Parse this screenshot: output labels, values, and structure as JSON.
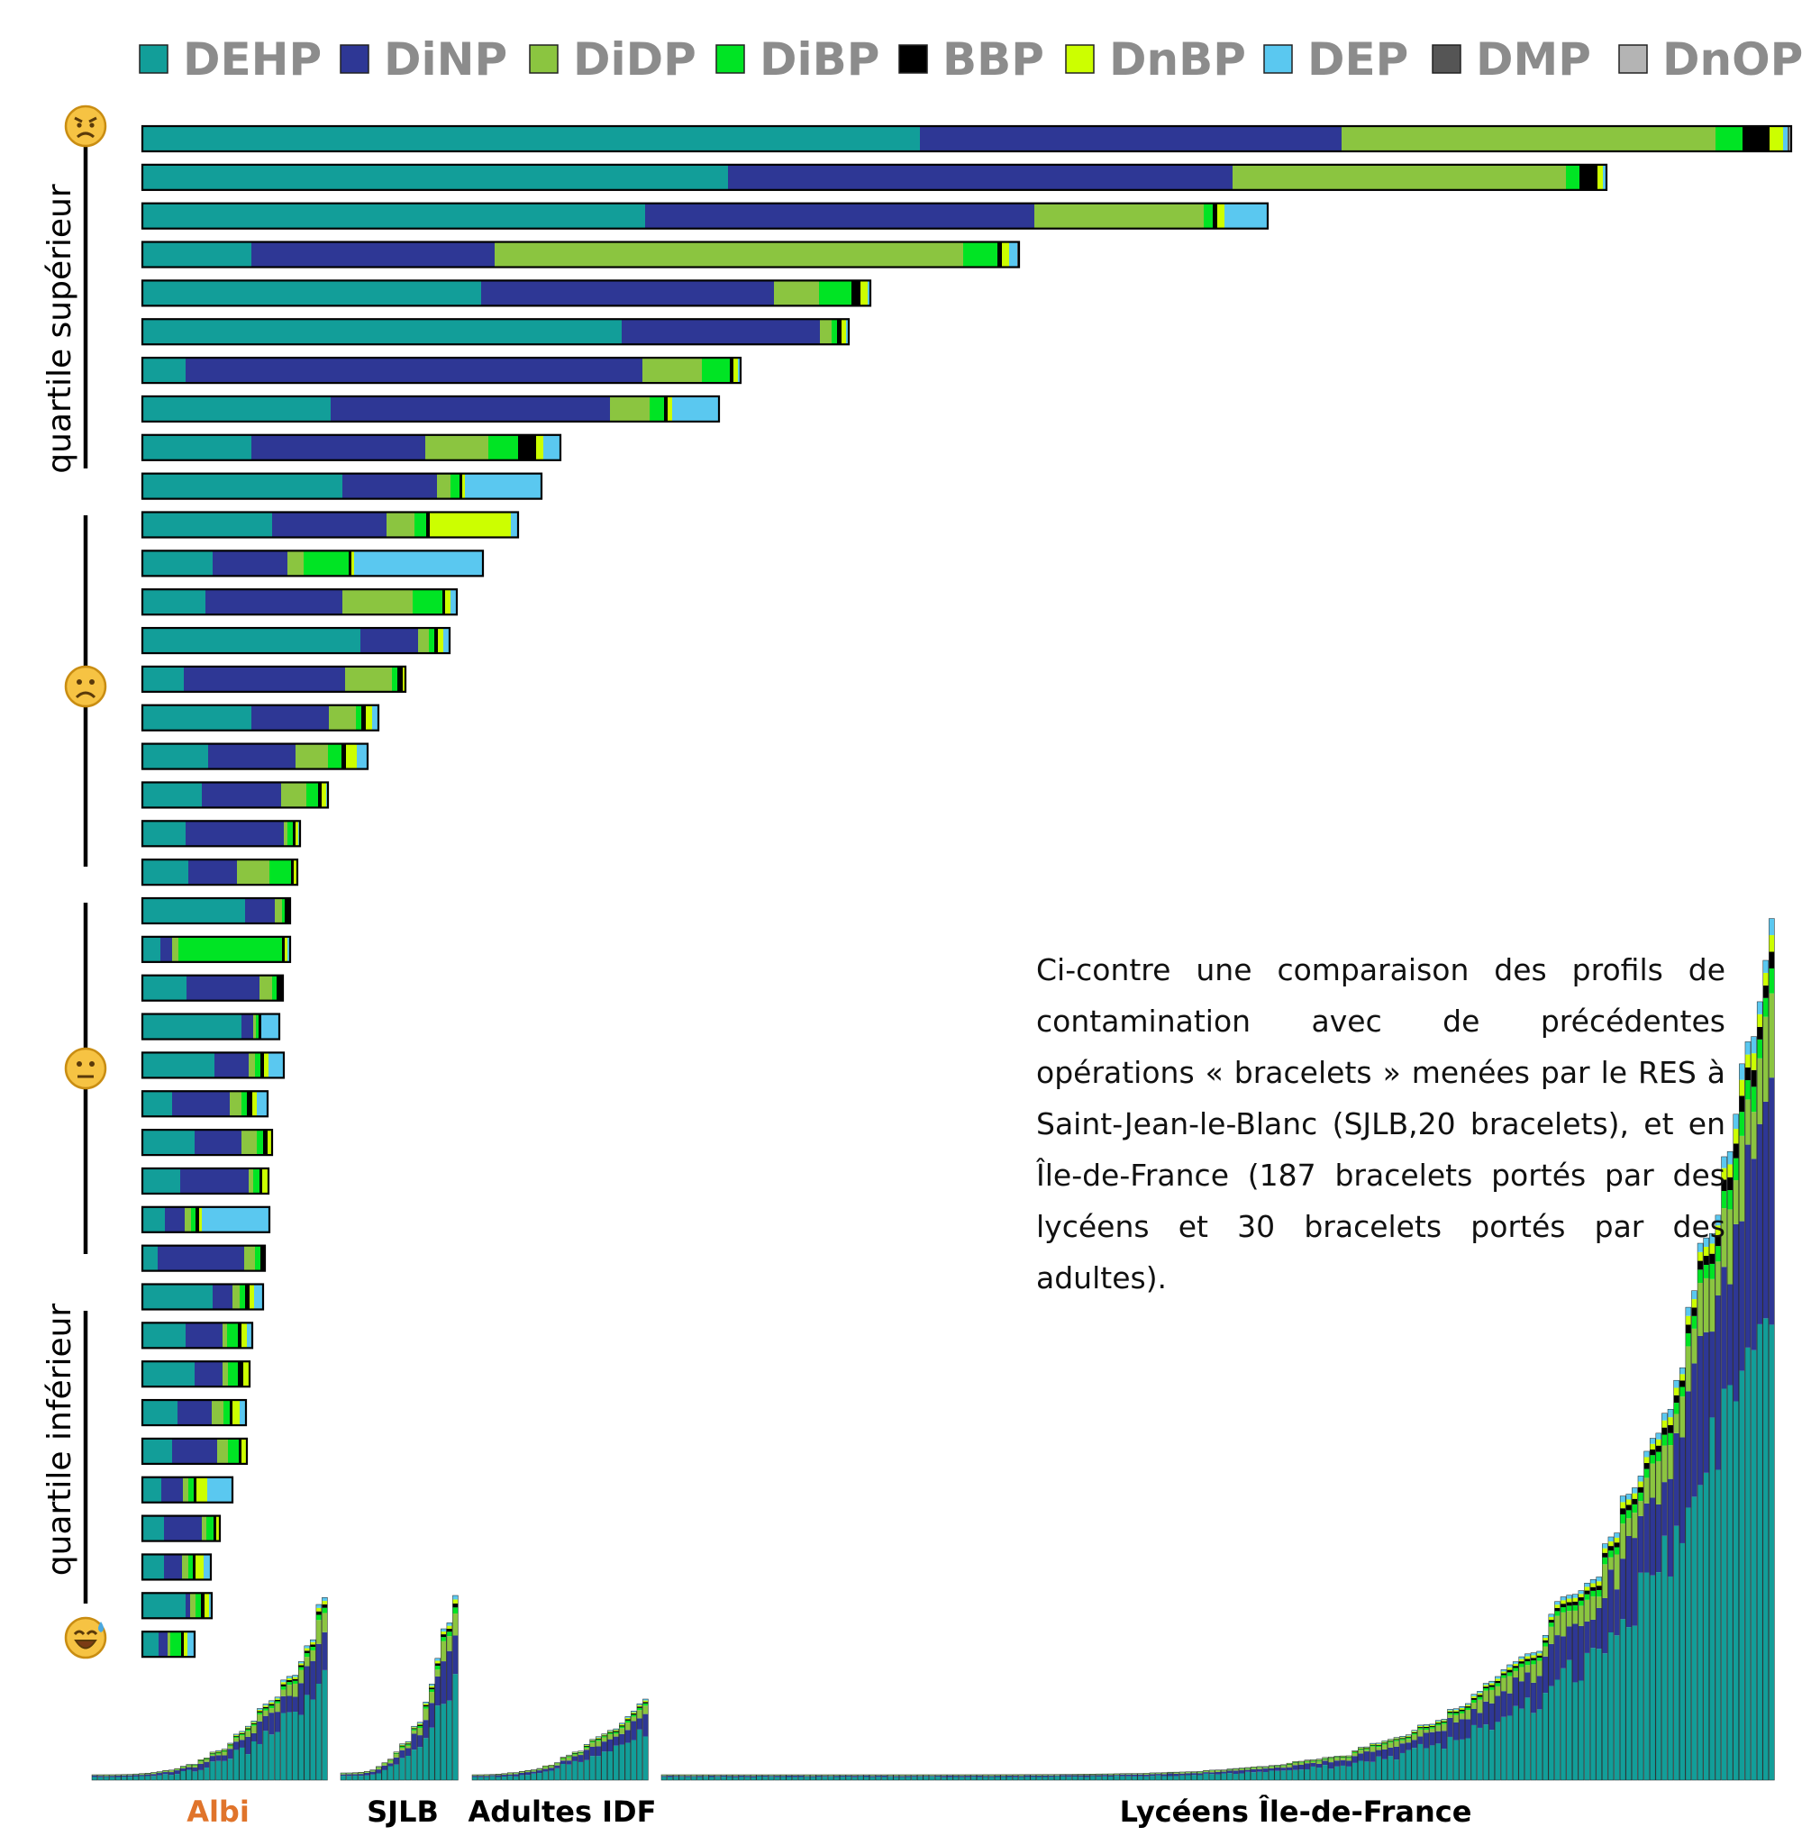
{
  "chart_data": {
    "type": "bar",
    "orientation": "horizontal",
    "stacked": true,
    "legend_position": "top",
    "grid": false,
    "legend": [
      {
        "name": "DEHP",
        "color": "#129e99"
      },
      {
        "name": "DiNP",
        "color": "#2e3795"
      },
      {
        "name": "DiDP",
        "color": "#8bc540"
      },
      {
        "name": "DiBP",
        "color": "#00e424"
      },
      {
        "name": "BBP",
        "color": "#000000"
      },
      {
        "name": "DnBP",
        "color": "#ccff00"
      },
      {
        "name": "DEP",
        "color": "#5ac8f0"
      },
      {
        "name": "DMP",
        "color": "#555555"
      },
      {
        "name": "DnOP",
        "color": "#b4b4b4"
      }
    ],
    "bars_note": "40 Albi bracelets, sorted descending; relative amounts per compound",
    "bars": [
      [
        863,
        468,
        415,
        30,
        30,
        15,
        5,
        2,
        2
      ],
      [
        650,
        560,
        370,
        15,
        20,
        6,
        3,
        1,
        0
      ],
      [
        558,
        432,
        188,
        10,
        5,
        8,
        48,
        0,
        0
      ],
      [
        121,
        270,
        520,
        38,
        5,
        8,
        9,
        2,
        0
      ],
      [
        376,
        325,
        50,
        36,
        10,
        8,
        3,
        0,
        0
      ],
      [
        532,
        220,
        13,
        6,
        5,
        5,
        3,
        0,
        0
      ],
      [
        48,
        507,
        66,
        31,
        4,
        5,
        3,
        0,
        0
      ],
      [
        209,
        310,
        44,
        16,
        4,
        5,
        52,
        0,
        0
      ],
      [
        121,
        193,
        70,
        33,
        20,
        8,
        19,
        0,
        0
      ],
      [
        222,
        105,
        15,
        10,
        3,
        3,
        85,
        0,
        0
      ],
      [
        144,
        127,
        31,
        13,
        4,
        90,
        8,
        0,
        0
      ],
      [
        78,
        83,
        18,
        50,
        3,
        3,
        143,
        0,
        0
      ],
      [
        70,
        152,
        78,
        33,
        3,
        6,
        7,
        0,
        0
      ],
      [
        242,
        64,
        12,
        6,
        4,
        6,
        7,
        0,
        0
      ],
      [
        46,
        179,
        52,
        6,
        6,
        3,
        0,
        0,
        0
      ],
      [
        121,
        86,
        30,
        6,
        5,
        7,
        7,
        0,
        0
      ],
      [
        73,
        97,
        36,
        15,
        5,
        12,
        12,
        0,
        0
      ],
      [
        66,
        88,
        28,
        13,
        4,
        5,
        2,
        0,
        0
      ],
      [
        48,
        109,
        4,
        6,
        3,
        3,
        2,
        0,
        0
      ],
      [
        51,
        54,
        36,
        24,
        3,
        4,
        0,
        0,
        0
      ],
      [
        114,
        33,
        8,
        3,
        6,
        0,
        0,
        0,
        0
      ],
      [
        20,
        13,
        7,
        115,
        3,
        3,
        3,
        0,
        0
      ],
      [
        49,
        81,
        14,
        5,
        7,
        0,
        0,
        0,
        0
      ],
      [
        110,
        13,
        3,
        3,
        3,
        0,
        20,
        0,
        0
      ],
      [
        80,
        38,
        7,
        6,
        4,
        5,
        17,
        0,
        0
      ],
      [
        33,
        64,
        13,
        6,
        6,
        5,
        12,
        0,
        0
      ],
      [
        58,
        52,
        17,
        7,
        5,
        5,
        0,
        0,
        0
      ],
      [
        42,
        76,
        5,
        7,
        3,
        7,
        0,
        0,
        0
      ],
      [
        25,
        22,
        7,
        5,
        4,
        3,
        75,
        0,
        0
      ],
      [
        17,
        96,
        12,
        6,
        5,
        0,
        0,
        0,
        0
      ],
      [
        78,
        22,
        8,
        6,
        5,
        5,
        10,
        0,
        0
      ],
      [
        48,
        41,
        5,
        12,
        4,
        6,
        6,
        0,
        0
      ],
      [
        58,
        31,
        6,
        11,
        6,
        7,
        0,
        0,
        0
      ],
      [
        39,
        38,
        13,
        7,
        3,
        8,
        7,
        0,
        0
      ],
      [
        33,
        50,
        12,
        12,
        3,
        6,
        0,
        0,
        0
      ],
      [
        21,
        24,
        6,
        6,
        3,
        12,
        28,
        0,
        0
      ],
      [
        24,
        42,
        5,
        8,
        3,
        4,
        0,
        0,
        0
      ],
      [
        24,
        20,
        7,
        5,
        3,
        9,
        8,
        0,
        0
      ],
      [
        48,
        5,
        6,
        6,
        4,
        5,
        3,
        0,
        0
      ],
      [
        18,
        10,
        3,
        12,
        3,
        4,
        8,
        0,
        0
      ]
    ],
    "comparison_groups": [
      {
        "name": "Albi",
        "label_color": "#e0742b",
        "count": 40
      },
      {
        "name": "SJLB",
        "label_color": "#000000",
        "count": 20
      },
      {
        "name": "Adultes IDF",
        "label_color": "#000000",
        "count": 30
      },
      {
        "name": "Lycéens Île-de-France",
        "label_color": "#000000",
        "count": 187
      }
    ],
    "quartile_labels": {
      "upper": "quartile supérieur",
      "lower": "quartile inférieur"
    }
  },
  "note": {
    "text": "Ci-contre une comparaison des profils de contamination avec de précédentes opérations « bracelets » menées par le RES à Saint-Jean-le-Blanc (SJLB,20 bracelets), et en Île-de-France (187 bracelets portés par des lycéens et 30 bracelets portés par des adultes)."
  },
  "faces": [
    {
      "name": "angry-face-icon",
      "glyph": "😠"
    },
    {
      "name": "frowning-face-icon",
      "glyph": "☹"
    },
    {
      "name": "neutral-face-icon",
      "glyph": "😐"
    },
    {
      "name": "sweat-smile-face-icon",
      "glyph": "😅"
    }
  ]
}
